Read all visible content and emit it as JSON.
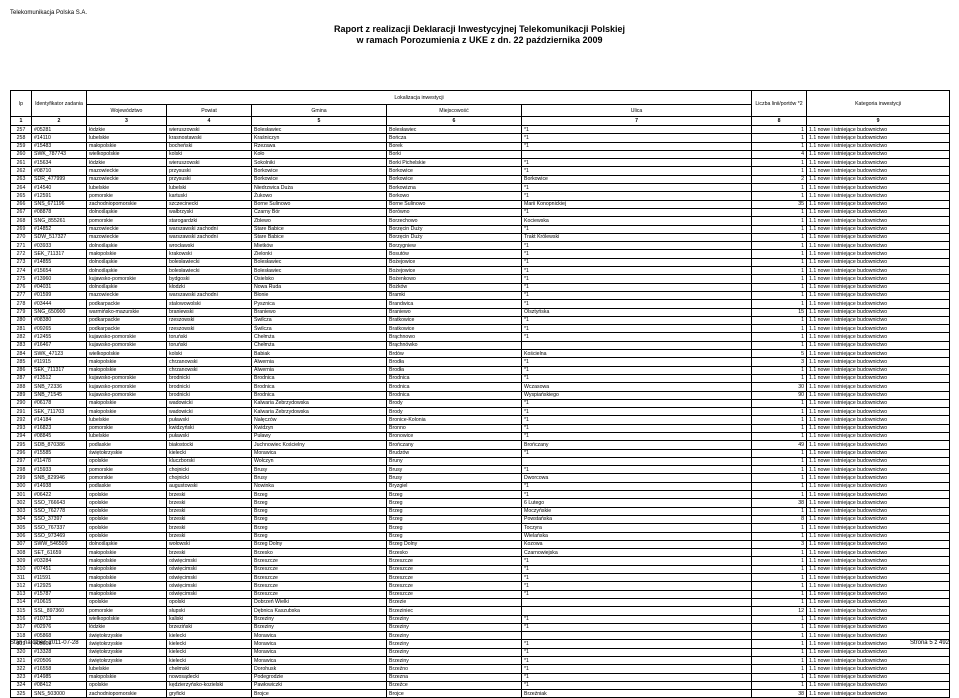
{
  "header": {
    "company": "Telekomunikacja Polska S.A.",
    "title_line1": "Raport z realizacji Deklaracji Inwestycyjnej Telekomunikacji Polskiej",
    "title_line2": "w ramach Porozumienia z UKE z dn. 22 października 2009"
  },
  "footer": {
    "date": "Stan na dzień 2011-07-28",
    "page": "Strona 5 z 492"
  },
  "columns_group": {
    "lokalizacja": "Lokalizacja inwestycji"
  },
  "columns": [
    "lp",
    "Identyfikator zadania",
    "Województwo",
    "Powiat",
    "Gmina",
    "Miejscowość",
    "Ulica",
    "Liczba linii/portów *2",
    "Kategoria inwestycji"
  ],
  "col_nums": [
    "1",
    "2",
    "3",
    "4",
    "5",
    "6",
    "7",
    "8",
    "9"
  ],
  "default_category": "1.1 nowe i istniejące budownictwo",
  "rows": [
    [
      "257",
      "#05281",
      "łódzkie",
      "wieruszowski",
      "Bolesławiec",
      "Bolesławiec",
      "*1",
      "1"
    ],
    [
      "258",
      "#14110",
      "lubelskie",
      "krasnostawski",
      "Kraśniczyn",
      "Bończa",
      "*1",
      "1"
    ],
    [
      "259",
      "#15483",
      "małopolskie",
      "bocheński",
      "Rzezawa",
      "Borek",
      "*1",
      "1"
    ],
    [
      "260",
      "SWK_787743",
      "wielkopolskie",
      "kolski",
      "Koło",
      "Borki",
      "",
      "4"
    ],
    [
      "261",
      "#15634",
      "łódzkie",
      "wieruszowski",
      "Sokolniki",
      "Borki Pichelskie",
      "*1",
      "1"
    ],
    [
      "262",
      "#08710",
      "mazowieckie",
      "przysuski",
      "Borkowice",
      "Borkowice",
      "*1",
      "1"
    ],
    [
      "263",
      "SDR_477999",
      "mazowieckie",
      "przysuski",
      "Borkowice",
      "Borkowice",
      "Borkowice",
      "2"
    ],
    [
      "264",
      "#14540",
      "lubelskie",
      "lubelski",
      "Niedrzwica Duża",
      "Borkowizna",
      "*1",
      "1"
    ],
    [
      "265",
      "#12591",
      "pomorskie",
      "kartuski",
      "Żukowo",
      "Borkowo",
      "*1",
      "1"
    ],
    [
      "266",
      "SNS_671196",
      "zachodniopomorskie",
      "szczecinecki",
      "Borne Sulinowo",
      "Borne Sulinowo",
      "Marii Konopnickiej",
      "35"
    ],
    [
      "267",
      "#08878",
      "dolnośląskie",
      "wałbrzyski",
      "Czarny Bór",
      "Borówno",
      "*1",
      "1"
    ],
    [
      "268",
      "SNG_855261",
      "pomorskie",
      "starogardzki",
      "Zblewo",
      "Borzechowo",
      "Kociewska",
      "1"
    ],
    [
      "269",
      "#14852",
      "mazowieckie",
      "warszawski zachodni",
      "Stare Babice",
      "Borzęcin Duży",
      "*1",
      "1"
    ],
    [
      "270",
      "SDW_517327",
      "mazowieckie",
      "warszawski zachodni",
      "Stare Babice",
      "Borzęcin Duży",
      "Trakt Królewski",
      "1"
    ],
    [
      "271",
      "#03933",
      "dolnośląskie",
      "wrocławski",
      "Mietków",
      "Borzygniew",
      "*1",
      "1"
    ],
    [
      "272",
      "SEK_711317",
      "małopolskie",
      "krakowski",
      "Zielonki",
      "Bosutów",
      "*1",
      "1"
    ],
    [
      "273",
      "#14855",
      "dolnośląskie",
      "bolesławiecki",
      "Bolesławiec",
      "Bożejowice",
      "*1",
      "1"
    ],
    [
      "274",
      "#15654",
      "dolnośląskie",
      "bolesławiecki",
      "Bolesławiec",
      "Bożejowice",
      "*1",
      "1"
    ],
    [
      "275",
      "#13960",
      "kujawsko-pomorskie",
      "bydgoski",
      "Osielsko",
      "Bożenkowo",
      "*1",
      "1"
    ],
    [
      "276",
      "#04031",
      "dolnośląskie",
      "kłodzki",
      "Nowa Ruda",
      "Bożków",
      "*1",
      "1"
    ],
    [
      "277",
      "#01599",
      "mazowieckie",
      "warszawski zachodni",
      "Błonie",
      "Bramki",
      "*1",
      "1"
    ],
    [
      "278",
      "#03444",
      "podkarpackie",
      "stalowowolski",
      "Pysznica",
      "Brandwica",
      "*1",
      "1"
    ],
    [
      "279",
      "SNG_650900",
      "warmińsko-mazurskie",
      "braniewski",
      "Braniewo",
      "Braniewo",
      "Olsztyńska",
      "15"
    ],
    [
      "280",
      "#08380",
      "podkarpackie",
      "rzeszowski",
      "Świlcza",
      "Bratkowice",
      "*1",
      "1"
    ],
    [
      "281",
      "#09265",
      "podkarpackie",
      "rzeszowski",
      "Świlcza",
      "Bratkowice",
      "*1",
      "1"
    ],
    [
      "282",
      "#12455",
      "kujawsko-pomorskie",
      "toruński",
      "Chełmża",
      "Brąchnowo",
      "*1",
      "1"
    ],
    [
      "283",
      "#16467",
      "kujawsko-pomorskie",
      "toruński",
      "Chełmża",
      "Brąchnówko",
      "",
      "1"
    ],
    [
      "284",
      "SWK_47123",
      "wielkopolskie",
      "kolski",
      "Babiak",
      "Brdów",
      "Kościelna",
      "5"
    ],
    [
      "285",
      "#11915",
      "małopolskie",
      "chrzanowski",
      "Alwernia",
      "Brodła",
      "*1",
      "3"
    ],
    [
      "286",
      "SEK_711317",
      "małopolskie",
      "chrzanowski",
      "Alwernia",
      "Brodła",
      "*1",
      "1"
    ],
    [
      "287",
      "#13512",
      "kujawsko-pomorskie",
      "brodnicki",
      "Brodnica",
      "Brodnica",
      "*1",
      "1"
    ],
    [
      "288",
      "SNB_72336",
      "kujawsko-pomorskie",
      "brodnicki",
      "Brodnica",
      "Brodnica",
      "Wczasowa",
      "30"
    ],
    [
      "289",
      "SNB_71545",
      "kujawsko-pomorskie",
      "brodnicki",
      "Brodnica",
      "Brodnica",
      "Wyspiańskiego",
      "90"
    ],
    [
      "290",
      "#06178",
      "małopolskie",
      "wadowicki",
      "Kalwaria Zebrzydowska",
      "Brody",
      "*1",
      "1"
    ],
    [
      "291",
      "SEK_711703",
      "małopolskie",
      "wadowicki",
      "Kalwaria Zebrzydowska",
      "Brody",
      "*1",
      "1"
    ],
    [
      "292",
      "#14184",
      "lubelskie",
      "puławski",
      "Nałęczów",
      "Bronice-Kolonia",
      "*1",
      "1"
    ],
    [
      "293",
      "#16823",
      "pomorskie",
      "kwidzyński",
      "Kwidzyn",
      "Bronno",
      "*1",
      "1"
    ],
    [
      "294",
      "#08845",
      "lubelskie",
      "puławski",
      "Puławy",
      "Bronowice",
      "*1",
      "1"
    ],
    [
      "295",
      "SDB_870386",
      "podlaskie",
      "białostocki",
      "Juchnowiec Kościelny",
      "Brończany",
      "Brończany",
      "49"
    ],
    [
      "296",
      "#15585",
      "świętokrzyskie",
      "kielecki",
      "Morawica",
      "Brudzów",
      "*1",
      "1"
    ],
    [
      "297",
      "#11478",
      "opolskie",
      "kluczborski",
      "Wołczyn",
      "Bruny",
      "",
      "1"
    ],
    [
      "298",
      "#15933",
      "pomorskie",
      "chojnicki",
      "Brusy",
      "Brusy",
      "*1",
      "1"
    ],
    [
      "299",
      "SNB_829946",
      "pomorskie",
      "chojnicki",
      "Brusy",
      "Brusy",
      "Dworcowa",
      "1"
    ],
    [
      "300",
      "#14938",
      "podlaskie",
      "augustowski",
      "Nowinka",
      "Bryzgiel",
      "*1",
      "1"
    ],
    [
      "301",
      "#06422",
      "opolskie",
      "brzeski",
      "Brzeg",
      "Brzeg",
      "*1",
      "1"
    ],
    [
      "302",
      "SSO_766643",
      "opolskie",
      "brzeski",
      "Brzeg",
      "Brzeg",
      "6 Lutego",
      "38"
    ],
    [
      "303",
      "SSO_762778",
      "opolskie",
      "brzeski",
      "Brzeg",
      "Brzeg",
      "Moczyńskie",
      "1"
    ],
    [
      "304",
      "SSO_37397",
      "opolskie",
      "brzeski",
      "Brzeg",
      "Brzeg",
      "Powstańska",
      "8"
    ],
    [
      "305",
      "SSO_767337",
      "opolskie",
      "brzeski",
      "Brzeg",
      "Brzeg",
      "Toczyra",
      "1"
    ],
    [
      "306",
      "SSO_973469",
      "opolskie",
      "brzeski",
      "Brzeg",
      "Brzeg",
      "Wielańska",
      "1"
    ],
    [
      "307",
      "SWW_546509",
      "dolnośląskie",
      "wołowski",
      "Brzeg Dolny",
      "Brzeg Dolny",
      "Kozowa",
      "3"
    ],
    [
      "308",
      "SET_61659",
      "małopolskie",
      "brzeski",
      "Brzesko",
      "Brzesko",
      "Czarnowiejska",
      "1"
    ],
    [
      "309",
      "#03284",
      "małopolskie",
      "oświęcimski",
      "Brzeszcze",
      "Brzeszcze",
      "*1",
      "1"
    ],
    [
      "310",
      "#07451",
      "małopolskie",
      "oświęcimski",
      "Brzeszcze",
      "Brzeszcze",
      "*1",
      "1"
    ],
    [
      "311",
      "#11591",
      "małopolskie",
      "oświęcimski",
      "Brzeszcze",
      "Brzeszcze",
      "*1",
      "1"
    ],
    [
      "312",
      "#12925",
      "małopolskie",
      "oświęcimski",
      "Brzeszcze",
      "Brzeszcze",
      "*1",
      "1"
    ],
    [
      "313",
      "#15787",
      "małopolskie",
      "oświęcimski",
      "Brzeszcze",
      "Brzeszcze",
      "*1",
      "1"
    ],
    [
      "314",
      "#10615",
      "opolskie",
      "opolski",
      "Dobrzeń Wielki",
      "Brzezie",
      "",
      "1"
    ],
    [
      "315",
      "SSL_897360",
      "pomorskie",
      "słupski",
      "Dębnica Kaszubska",
      "Brzeziniec",
      "",
      "12"
    ],
    [
      "316",
      "#10713",
      "wielkopolskie",
      "kaliski",
      "Brzeziny",
      "Brzeziny",
      "*1",
      "1"
    ],
    [
      "317",
      "#02976",
      "łódzkie",
      "brzeziński",
      "Brzeziny",
      "Brzeziny",
      "*1",
      "1"
    ],
    [
      "318",
      "#05868",
      "świętokrzyskie",
      "kielecki",
      "Morawica",
      "Brzeziny",
      "",
      "1"
    ],
    [
      "319",
      "#05609",
      "świętokrzyskie",
      "kielecki",
      "Morawica",
      "Brzeziny",
      "*1",
      "1"
    ],
    [
      "320",
      "#13328",
      "świętokrzyskie",
      "kielecki",
      "Morawica",
      "Brzeziny",
      "*1",
      "1"
    ],
    [
      "321",
      "#20506",
      "świętokrzyskie",
      "kielecki",
      "Morawica",
      "Brzeziny",
      "*1",
      "1"
    ],
    [
      "322",
      "#16558",
      "lubelskie",
      "chełmski",
      "Dorohusk",
      "Brzeźno",
      "*1",
      "1"
    ],
    [
      "323",
      "#14985",
      "małopolskie",
      "nowosądecki",
      "Podegrodzie",
      "Brzezna",
      "*1",
      "1"
    ],
    [
      "324",
      "#08412",
      "opolskie",
      "kędzierzyńsko-kozielski",
      "Pawłowiczki",
      "Brzeźce",
      "*1",
      "1"
    ],
    [
      "325",
      "SNS_503000",
      "zachodniopomorskie",
      "gryficki",
      "Brojce",
      "Brojce",
      "Brzeźniak",
      "38"
    ]
  ]
}
